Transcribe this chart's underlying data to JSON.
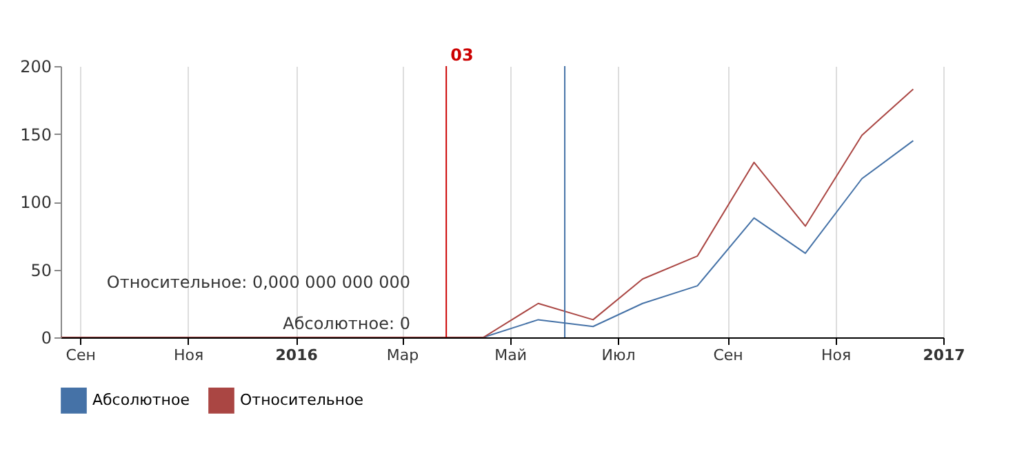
{
  "chart_data": {
    "type": "line",
    "x": [
      "2015-08-21",
      "2015-09-15",
      "2015-10-15",
      "2015-11-15",
      "2015-12-15",
      "2016-01-15",
      "2016-02-15",
      "2016-03-15",
      "2016-04-16",
      "2016-05-17",
      "2016-06-17",
      "2016-07-15",
      "2016-08-15",
      "2016-09-16",
      "2016-10-15",
      "2016-11-16",
      "2016-12-15"
    ],
    "series": [
      {
        "name": "Абсолютное",
        "color": "#4572a7",
        "values": [
          null,
          null,
          null,
          null,
          null,
          null,
          null,
          0,
          0,
          13,
          8,
          25,
          38,
          88,
          62,
          117,
          145
        ]
      },
      {
        "name": "Относительное",
        "color": "#aa4643",
        "values": [
          0,
          0,
          0,
          0,
          0,
          0,
          0,
          0,
          0,
          25,
          13,
          43,
          60,
          129,
          82,
          149,
          183
        ]
      }
    ],
    "xlim": [
      "2015-08-21",
      "2017-01-01"
    ],
    "xticks": [
      {
        "value": "2015-09-01",
        "label": "Сен"
      },
      {
        "value": "2015-11-01",
        "label": "Ноя"
      },
      {
        "value": "2016-01-01",
        "label": "2016"
      },
      {
        "value": "2016-03-01",
        "label": "Мар"
      },
      {
        "value": "2016-05-01",
        "label": "Май"
      },
      {
        "value": "2016-07-01",
        "label": "Июл"
      },
      {
        "value": "2016-09-01",
        "label": "Сен"
      },
      {
        "value": "2016-11-01",
        "label": "Ноя"
      },
      {
        "value": "2017-01-01",
        "label": "2017"
      }
    ],
    "ylim": [
      0,
      200
    ],
    "yticks": [
      0,
      50,
      100,
      150,
      200
    ],
    "grid": "x",
    "legend": "bottom left",
    "marker": "none",
    "line_style": "solid",
    "ref_lines": [
      {
        "axis": "x",
        "value": "2016-03-26",
        "label": "03",
        "color": "#cc0000"
      },
      {
        "axis": "x",
        "value": "2016-06-01",
        "color": "#4572a7"
      }
    ],
    "annotations": [
      {
        "text": "Относительное: 0,000 000 000 000",
        "x": "2016-03-15",
        "y": 0
      },
      {
        "text": "Абсолютное: 0",
        "x": "2016-03-15",
        "y": 0
      }
    ]
  }
}
